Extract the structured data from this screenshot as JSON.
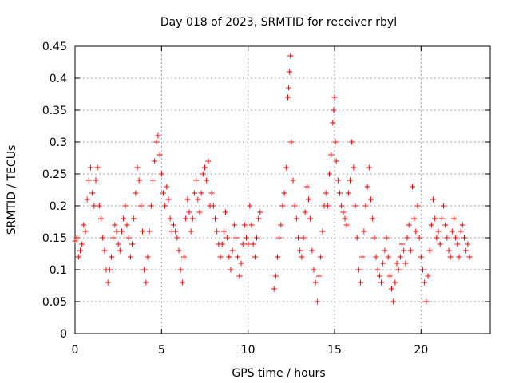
{
  "chart_data": {
    "type": "scatter",
    "title": "Day 018 of 2023, SRMTID for receiver rbyl",
    "xlabel": "GPS time / hours",
    "ylabel": "SRMTID / TECUs",
    "xlim": [
      0,
      24
    ],
    "ylim": [
      0,
      0.45
    ],
    "xticks": [
      0,
      5,
      10,
      15,
      20
    ],
    "xtick_labels": [
      "0",
      "5",
      "10",
      "15",
      "20"
    ],
    "yticks": [
      0,
      0.05,
      0.1,
      0.15,
      0.2,
      0.25,
      0.3,
      0.35,
      0.4,
      0.45
    ],
    "ytick_labels": [
      "0",
      "0.05",
      "0.1",
      "0.15",
      "0.2",
      "0.25",
      "0.3",
      "0.35",
      "0.4",
      "0.45"
    ],
    "grid": true,
    "marker": "+",
    "color": "#ff0000",
    "series": [
      {
        "points": [
          [
            0.0,
            0.145
          ],
          [
            0.1,
            0.15
          ],
          [
            0.2,
            0.12
          ],
          [
            0.3,
            0.13
          ],
          [
            0.4,
            0.14
          ],
          [
            0.5,
            0.17
          ],
          [
            0.6,
            0.16
          ],
          [
            0.7,
            0.21
          ],
          [
            0.8,
            0.24
          ],
          [
            0.9,
            0.26
          ],
          [
            1.0,
            0.22
          ],
          [
            1.1,
            0.2
          ],
          [
            1.2,
            0.24
          ],
          [
            1.3,
            0.26
          ],
          [
            1.4,
            0.2
          ],
          [
            1.5,
            0.18
          ],
          [
            1.6,
            0.15
          ],
          [
            1.7,
            0.13
          ],
          [
            1.8,
            0.1
          ],
          [
            1.9,
            0.08
          ],
          [
            2.0,
            0.1
          ],
          [
            2.1,
            0.12
          ],
          [
            2.2,
            0.15
          ],
          [
            2.3,
            0.17
          ],
          [
            2.4,
            0.16
          ],
          [
            2.5,
            0.14
          ],
          [
            2.6,
            0.13
          ],
          [
            2.7,
            0.16
          ],
          [
            2.8,
            0.18
          ],
          [
            2.9,
            0.2
          ],
          [
            3.0,
            0.17
          ],
          [
            3.1,
            0.15
          ],
          [
            3.2,
            0.12
          ],
          [
            3.3,
            0.14
          ],
          [
            3.4,
            0.18
          ],
          [
            3.5,
            0.22
          ],
          [
            3.6,
            0.26
          ],
          [
            3.7,
            0.24
          ],
          [
            3.8,
            0.2
          ],
          [
            3.9,
            0.16
          ],
          [
            4.0,
            0.1
          ],
          [
            4.1,
            0.08
          ],
          [
            4.2,
            0.12
          ],
          [
            4.3,
            0.16
          ],
          [
            4.4,
            0.2
          ],
          [
            4.5,
            0.24
          ],
          [
            4.6,
            0.27
          ],
          [
            4.7,
            0.3
          ],
          [
            4.8,
            0.31
          ],
          [
            4.9,
            0.28
          ],
          [
            5.0,
            0.25
          ],
          [
            5.1,
            0.22
          ],
          [
            5.2,
            0.2
          ],
          [
            5.3,
            0.23
          ],
          [
            5.4,
            0.21
          ],
          [
            5.5,
            0.18
          ],
          [
            5.6,
            0.16
          ],
          [
            5.7,
            0.17
          ],
          [
            5.8,
            0.16
          ],
          [
            5.9,
            0.15
          ],
          [
            6.0,
            0.13
          ],
          [
            6.1,
            0.1
          ],
          [
            6.2,
            0.08
          ],
          [
            6.3,
            0.12
          ],
          [
            6.4,
            0.18
          ],
          [
            6.5,
            0.21
          ],
          [
            6.6,
            0.19
          ],
          [
            6.7,
            0.16
          ],
          [
            6.8,
            0.18
          ],
          [
            6.9,
            0.22
          ],
          [
            7.0,
            0.24
          ],
          [
            7.1,
            0.21
          ],
          [
            7.2,
            0.19
          ],
          [
            7.3,
            0.22
          ],
          [
            7.4,
            0.25
          ],
          [
            7.5,
            0.26
          ],
          [
            7.6,
            0.24
          ],
          [
            7.7,
            0.27
          ],
          [
            7.8,
            0.2
          ],
          [
            7.9,
            0.22
          ],
          [
            8.0,
            0.2
          ],
          [
            8.1,
            0.18
          ],
          [
            8.2,
            0.16
          ],
          [
            8.3,
            0.14
          ],
          [
            8.4,
            0.12
          ],
          [
            8.5,
            0.14
          ],
          [
            8.6,
            0.16
          ],
          [
            8.7,
            0.19
          ],
          [
            8.8,
            0.15
          ],
          [
            8.9,
            0.12
          ],
          [
            9.0,
            0.1
          ],
          [
            9.1,
            0.13
          ],
          [
            9.2,
            0.17
          ],
          [
            9.3,
            0.15
          ],
          [
            9.4,
            0.12
          ],
          [
            9.5,
            0.09
          ],
          [
            9.6,
            0.11
          ],
          [
            9.7,
            0.14
          ],
          [
            9.8,
            0.17
          ],
          [
            9.9,
            0.15
          ],
          [
            10.0,
            0.14
          ],
          [
            10.1,
            0.2
          ],
          [
            10.2,
            0.17
          ],
          [
            10.3,
            0.14
          ],
          [
            10.4,
            0.12
          ],
          [
            10.5,
            0.15
          ],
          [
            10.6,
            0.18
          ],
          [
            10.7,
            0.19
          ],
          [
            11.5,
            0.07
          ],
          [
            11.6,
            0.09
          ],
          [
            11.7,
            0.12
          ],
          [
            11.8,
            0.15
          ],
          [
            11.9,
            0.17
          ],
          [
            12.0,
            0.2
          ],
          [
            12.1,
            0.22
          ],
          [
            12.2,
            0.26
          ],
          [
            12.3,
            0.37
          ],
          [
            12.35,
            0.385
          ],
          [
            12.4,
            0.41
          ],
          [
            12.45,
            0.435
          ],
          [
            12.5,
            0.3
          ],
          [
            12.6,
            0.24
          ],
          [
            12.7,
            0.2
          ],
          [
            12.8,
            0.18
          ],
          [
            12.9,
            0.15
          ],
          [
            13.0,
            0.13
          ],
          [
            13.1,
            0.12
          ],
          [
            13.2,
            0.15
          ],
          [
            13.3,
            0.19
          ],
          [
            13.4,
            0.23
          ],
          [
            13.5,
            0.21
          ],
          [
            13.6,
            0.18
          ],
          [
            13.7,
            0.13
          ],
          [
            13.8,
            0.1
          ],
          [
            13.9,
            0.08
          ],
          [
            14.0,
            0.05
          ],
          [
            14.1,
            0.09
          ],
          [
            14.2,
            0.12
          ],
          [
            14.3,
            0.16
          ],
          [
            14.4,
            0.2
          ],
          [
            14.5,
            0.22
          ],
          [
            14.6,
            0.2
          ],
          [
            14.7,
            0.25
          ],
          [
            14.8,
            0.28
          ],
          [
            14.9,
            0.33
          ],
          [
            14.95,
            0.35
          ],
          [
            15.0,
            0.37
          ],
          [
            15.05,
            0.3
          ],
          [
            15.1,
            0.27
          ],
          [
            15.2,
            0.24
          ],
          [
            15.3,
            0.22
          ],
          [
            15.4,
            0.2
          ],
          [
            15.5,
            0.19
          ],
          [
            15.6,
            0.18
          ],
          [
            15.7,
            0.17
          ],
          [
            15.8,
            0.22
          ],
          [
            15.9,
            0.24
          ],
          [
            16.0,
            0.3
          ],
          [
            16.1,
            0.26
          ],
          [
            16.2,
            0.2
          ],
          [
            16.3,
            0.15
          ],
          [
            16.4,
            0.1
          ],
          [
            16.5,
            0.08
          ],
          [
            16.6,
            0.12
          ],
          [
            16.7,
            0.16
          ],
          [
            16.8,
            0.2
          ],
          [
            16.9,
            0.23
          ],
          [
            17.0,
            0.26
          ],
          [
            17.1,
            0.21
          ],
          [
            17.2,
            0.18
          ],
          [
            17.3,
            0.15
          ],
          [
            17.4,
            0.12
          ],
          [
            17.5,
            0.1
          ],
          [
            17.6,
            0.09
          ],
          [
            17.7,
            0.08
          ],
          [
            17.8,
            0.11
          ],
          [
            17.9,
            0.13
          ],
          [
            18.0,
            0.15
          ],
          [
            18.1,
            0.12
          ],
          [
            18.2,
            0.09
          ],
          [
            18.3,
            0.07
          ],
          [
            18.4,
            0.05
          ],
          [
            18.5,
            0.08
          ],
          [
            18.6,
            0.11
          ],
          [
            18.7,
            0.1
          ],
          [
            18.8,
            0.12
          ],
          [
            18.9,
            0.14
          ],
          [
            19.0,
            0.13
          ],
          [
            19.1,
            0.11
          ],
          [
            19.2,
            0.15
          ],
          [
            19.3,
            0.17
          ],
          [
            19.4,
            0.13
          ],
          [
            19.5,
            0.23
          ],
          [
            19.6,
            0.18
          ],
          [
            19.7,
            0.16
          ],
          [
            19.8,
            0.2
          ],
          [
            19.9,
            0.15
          ],
          [
            20.0,
            0.12
          ],
          [
            20.1,
            0.1
          ],
          [
            20.2,
            0.08
          ],
          [
            20.3,
            0.05
          ],
          [
            20.4,
            0.09
          ],
          [
            20.5,
            0.13
          ],
          [
            20.6,
            0.17
          ],
          [
            20.7,
            0.21
          ],
          [
            20.8,
            0.18
          ],
          [
            20.9,
            0.15
          ],
          [
            21.0,
            0.16
          ],
          [
            21.1,
            0.14
          ],
          [
            21.2,
            0.18
          ],
          [
            21.3,
            0.2
          ],
          [
            21.4,
            0.17
          ],
          [
            21.5,
            0.15
          ],
          [
            21.6,
            0.13
          ],
          [
            21.7,
            0.12
          ],
          [
            21.8,
            0.16
          ],
          [
            21.9,
            0.18
          ],
          [
            22.0,
            0.15
          ],
          [
            22.1,
            0.14
          ],
          [
            22.2,
            0.12
          ],
          [
            22.3,
            0.16
          ],
          [
            22.4,
            0.17
          ],
          [
            22.5,
            0.15
          ],
          [
            22.6,
            0.13
          ],
          [
            22.7,
            0.14
          ],
          [
            22.8,
            0.12
          ]
        ]
      }
    ]
  }
}
